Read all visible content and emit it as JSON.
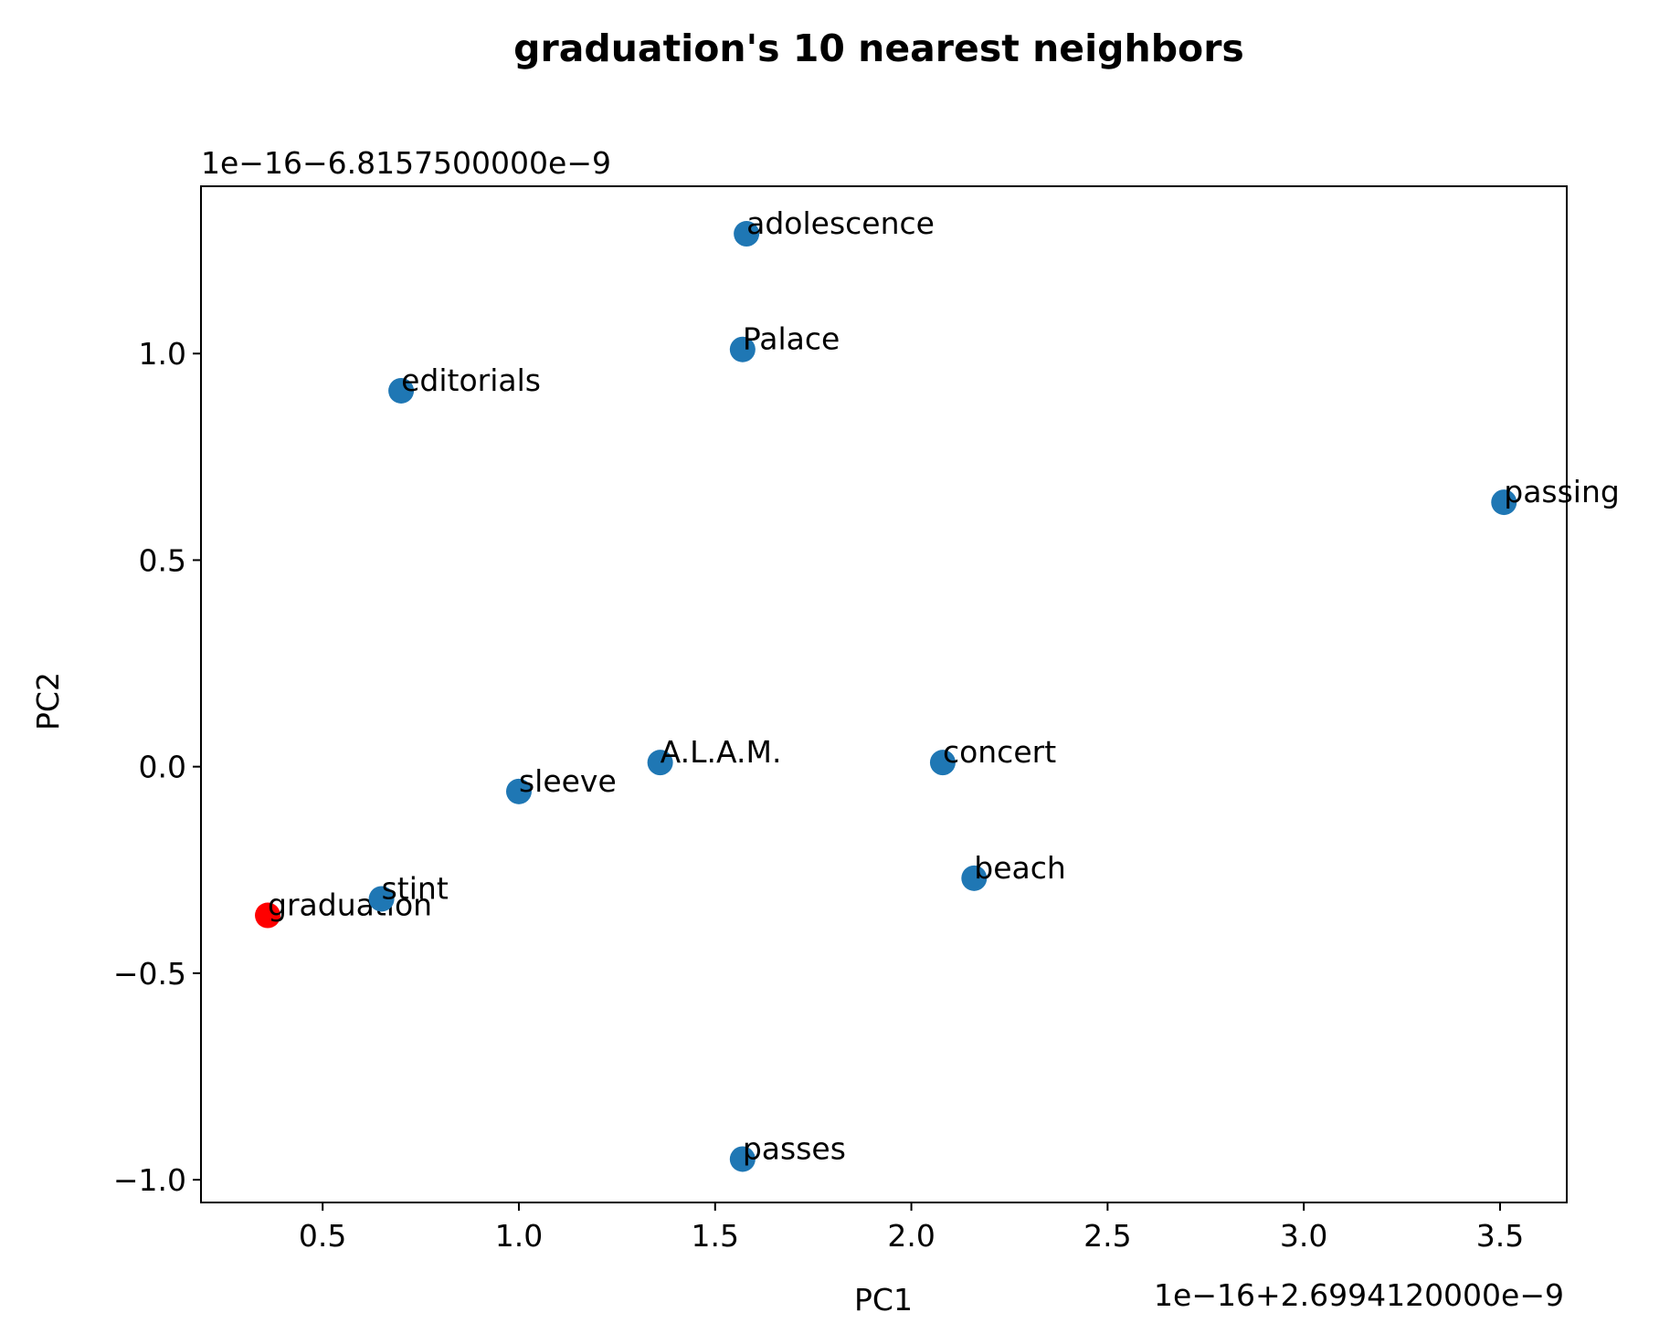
{
  "chart_data": {
    "type": "scatter",
    "title": "graduation's 10 nearest neighbors",
    "xlabel": "PC1",
    "ylabel": "PC2",
    "x_offset_text": "1e−16+2.6994120000e−9",
    "y_offset_text": "1e−16−6.8157500000e−9",
    "xlim": [
      0.19,
      3.67
    ],
    "ylim": [
      -1.055,
      1.405
    ],
    "x_ticks": [
      0.5,
      1.0,
      1.5,
      2.0,
      2.5,
      3.0,
      3.5
    ],
    "x_tick_labels": [
      "0.5",
      "1.0",
      "1.5",
      "2.0",
      "2.5",
      "3.0",
      "3.5"
    ],
    "y_ticks": [
      -1.0,
      -0.5,
      0.0,
      0.5,
      1.0
    ],
    "y_tick_labels": [
      "−1.0",
      "−0.5",
      "0.0",
      "0.5",
      "1.0"
    ],
    "grid": false,
    "colors": {
      "neighbor": "#1f77b4",
      "query": "#ff0000"
    },
    "points": [
      {
        "label": "graduation",
        "x": 0.36,
        "y": -0.36,
        "color": "#ff0000"
      },
      {
        "label": "stint",
        "x": 0.65,
        "y": -0.32,
        "color": "#1f77b4"
      },
      {
        "label": "sleeve",
        "x": 1.0,
        "y": -0.06,
        "color": "#1f77b4"
      },
      {
        "label": "A.L.A.M.",
        "x": 1.36,
        "y": 0.01,
        "color": "#1f77b4"
      },
      {
        "label": "concert",
        "x": 2.08,
        "y": 0.01,
        "color": "#1f77b4"
      },
      {
        "label": "beach",
        "x": 2.16,
        "y": -0.27,
        "color": "#1f77b4"
      },
      {
        "label": "passing",
        "x": 3.51,
        "y": 0.64,
        "color": "#1f77b4"
      },
      {
        "label": "editorials",
        "x": 0.7,
        "y": 0.91,
        "color": "#1f77b4"
      },
      {
        "label": "Palace",
        "x": 1.57,
        "y": 1.01,
        "color": "#1f77b4"
      },
      {
        "label": "adolescence",
        "x": 1.58,
        "y": 1.29,
        "color": "#1f77b4"
      },
      {
        "label": "passes",
        "x": 1.57,
        "y": -0.95,
        "color": "#1f77b4"
      }
    ]
  }
}
